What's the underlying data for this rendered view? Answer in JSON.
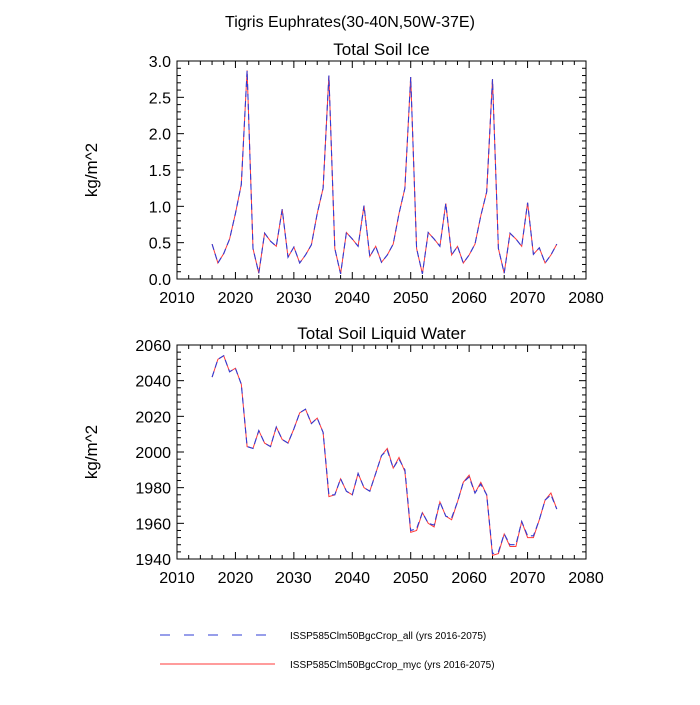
{
  "figure": {
    "suptitle": "Tigris Euphrates(30-40N,50W-37E)"
  },
  "colors": {
    "series_all": "#2f3cd6",
    "series_myc": "#ff3a3a"
  },
  "chart_data": [
    {
      "type": "line",
      "title": "Total Soil Ice",
      "xlabel": "",
      "ylabel": "kg/m^2",
      "xlim": [
        2010,
        2080
      ],
      "ylim": [
        0,
        3.0
      ],
      "xticks": [
        2010,
        2020,
        2030,
        2040,
        2050,
        2060,
        2070,
        2080
      ],
      "xtick_labels": [
        "2010",
        "2020",
        "2030",
        "2040",
        "2050",
        "2060",
        "2070",
        "2080"
      ],
      "yticks": [
        0,
        0.5,
        1.0,
        1.5,
        2.0,
        2.5,
        3.0
      ],
      "ytick_labels": [
        "0.0",
        "0.5",
        "1.0",
        "1.5",
        "2.0",
        "2.5",
        "3.0"
      ],
      "grid": false,
      "x": [
        2016,
        2017,
        2018,
        2019,
        2020,
        2021,
        2022,
        2023,
        2024,
        2025,
        2026,
        2027,
        2028,
        2029,
        2030,
        2031,
        2032,
        2033,
        2034,
        2035,
        2036,
        2037,
        2038,
        2039,
        2040,
        2041,
        2042,
        2043,
        2044,
        2045,
        2046,
        2047,
        2048,
        2049,
        2050,
        2051,
        2052,
        2053,
        2054,
        2055,
        2056,
        2057,
        2058,
        2059,
        2060,
        2061,
        2062,
        2063,
        2064,
        2065,
        2066,
        2067,
        2068,
        2069,
        2070,
        2071,
        2072,
        2073,
        2074,
        2075
      ],
      "series": [
        {
          "name": "ISSP585Clm50BgcCrop_all (yrs 2016-2075)",
          "style": "dashed",
          "values": [
            0.48,
            0.22,
            0.35,
            0.55,
            0.9,
            1.3,
            2.87,
            0.42,
            0.08,
            0.63,
            0.52,
            0.45,
            0.96,
            0.3,
            0.44,
            0.22,
            0.33,
            0.47,
            0.9,
            1.25,
            2.8,
            0.42,
            0.07,
            0.64,
            0.55,
            0.45,
            1.01,
            0.31,
            0.45,
            0.23,
            0.33,
            0.48,
            0.9,
            1.25,
            2.78,
            0.42,
            0.07,
            0.64,
            0.55,
            0.45,
            1.04,
            0.33,
            0.45,
            0.22,
            0.33,
            0.48,
            0.87,
            1.2,
            2.75,
            0.42,
            0.08,
            0.63,
            0.55,
            0.45,
            1.05,
            0.34,
            0.43,
            0.22,
            0.33,
            0.48
          ]
        },
        {
          "name": "ISSP585Clm50BgcCrop_myc (yrs 2016-2075)",
          "style": "solid",
          "values": [
            0.48,
            0.22,
            0.35,
            0.55,
            0.9,
            1.3,
            2.87,
            0.42,
            0.08,
            0.63,
            0.52,
            0.45,
            0.96,
            0.3,
            0.44,
            0.22,
            0.33,
            0.47,
            0.9,
            1.25,
            2.8,
            0.42,
            0.07,
            0.64,
            0.55,
            0.45,
            1.01,
            0.31,
            0.45,
            0.23,
            0.33,
            0.48,
            0.9,
            1.25,
            2.78,
            0.42,
            0.07,
            0.64,
            0.55,
            0.45,
            1.04,
            0.33,
            0.45,
            0.22,
            0.33,
            0.48,
            0.87,
            1.2,
            2.75,
            0.42,
            0.08,
            0.63,
            0.55,
            0.45,
            1.05,
            0.34,
            0.43,
            0.22,
            0.33,
            0.48
          ]
        }
      ]
    },
    {
      "type": "line",
      "title": "Total Soil Liquid Water",
      "xlabel": "",
      "ylabel": "kg/m^2",
      "xlim": [
        2010,
        2080
      ],
      "ylim": [
        1940,
        2060
      ],
      "xticks": [
        2010,
        2020,
        2030,
        2040,
        2050,
        2060,
        2070,
        2080
      ],
      "xtick_labels": [
        "2010",
        "2020",
        "2030",
        "2040",
        "2050",
        "2060",
        "2070",
        "2080"
      ],
      "yticks": [
        1940,
        1960,
        1980,
        2000,
        2020,
        2040,
        2060
      ],
      "ytick_labels": [
        "1940",
        "1960",
        "1980",
        "2000",
        "2020",
        "2040",
        "2060"
      ],
      "grid": false,
      "x": [
        2016,
        2017,
        2018,
        2019,
        2020,
        2021,
        2022,
        2023,
        2024,
        2025,
        2026,
        2027,
        2028,
        2029,
        2030,
        2031,
        2032,
        2033,
        2034,
        2035,
        2036,
        2037,
        2038,
        2039,
        2040,
        2041,
        2042,
        2043,
        2044,
        2045,
        2046,
        2047,
        2048,
        2049,
        2050,
        2051,
        2052,
        2053,
        2054,
        2055,
        2056,
        2057,
        2058,
        2059,
        2060,
        2061,
        2062,
        2063,
        2064,
        2065,
        2066,
        2067,
        2068,
        2069,
        2070,
        2071,
        2072,
        2073,
        2074,
        2075
      ],
      "series": [
        {
          "name": "ISSP585Clm50BgcCrop_all (yrs 2016-2075)",
          "style": "dashed",
          "values": [
            2042,
            2052,
            2054,
            2045,
            2047,
            2038,
            2003,
            2002,
            2012,
            2005,
            2003,
            2014,
            2007,
            2005,
            2013,
            2022,
            2024,
            2016,
            2019,
            2011,
            1976,
            1976,
            1985,
            1978,
            1976,
            1988,
            1980,
            1978,
            1988,
            1998,
            2001,
            1991,
            1996,
            1990,
            1956,
            1957,
            1966,
            1960,
            1959,
            1972,
            1964,
            1963,
            1972,
            1983,
            1986,
            1977,
            1982,
            1976,
            1943,
            1944,
            1954,
            1948,
            1948,
            1961,
            1953,
            1953,
            1962,
            1973,
            1976,
            1968
          ]
        },
        {
          "name": "ISSP585Clm50BgcCrop_myc (yrs 2016-2075)",
          "style": "solid",
          "values": [
            2042,
            2052,
            2054,
            2045,
            2047,
            2038,
            2003,
            2002,
            2012,
            2005,
            2003,
            2014,
            2007,
            2005,
            2013,
            2022,
            2024,
            2016,
            2019,
            2011,
            1975,
            1976,
            1985,
            1978,
            1976,
            1988,
            1980,
            1978,
            1988,
            1998,
            2002,
            1991,
            1997,
            1989,
            1955,
            1956,
            1966,
            1960,
            1958,
            1972,
            1964,
            1962,
            1972,
            1983,
            1987,
            1977,
            1983,
            1976,
            1942,
            1943,
            1954,
            1947,
            1947,
            1961,
            1952,
            1952,
            1962,
            1973,
            1977,
            1968
          ]
        }
      ]
    }
  ],
  "legend": {
    "items": [
      {
        "label": "ISSP585Clm50BgcCrop_all (yrs 2016-2075)",
        "style": "dashed"
      },
      {
        "label": "ISSP585Clm50BgcCrop_myc (yrs 2016-2075)",
        "style": "solid"
      }
    ]
  }
}
